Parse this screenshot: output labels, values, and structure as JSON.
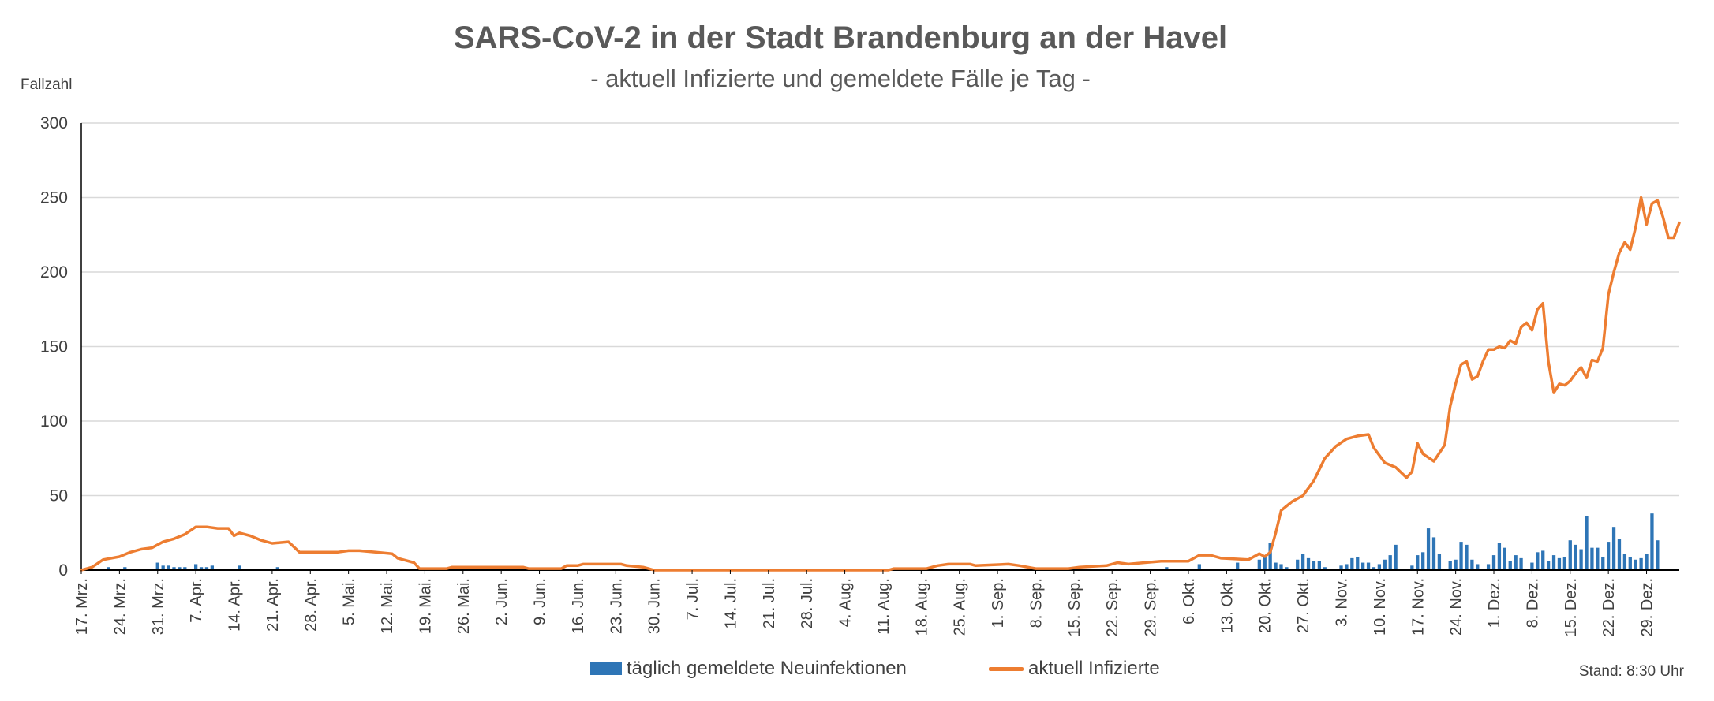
{
  "chart_data": {
    "type": "bar+line",
    "title": "SARS-CoV-2 in der Stadt Brandenburg an der Havel",
    "subtitle": "- aktuell Infizierte und gemeldete Fälle je Tag -",
    "ylabel": "Fallzahl",
    "ylim": [
      0,
      300
    ],
    "yticks": [
      0,
      50,
      100,
      150,
      200,
      250,
      300
    ],
    "grid": true,
    "x_start": "2020-03-17",
    "x_end": "2021-01-01",
    "xtick_labels": [
      "17. Mrz.",
      "24. Mrz.",
      "31. Mrz.",
      "7. Apr.",
      "14. Apr.",
      "21. Apr.",
      "28. Apr.",
      "5. Mai.",
      "12. Mai.",
      "19. Mai.",
      "26. Mai.",
      "2. Jun.",
      "9. Jun.",
      "16. Jun.",
      "23. Jun.",
      "30. Jun.",
      "7. Jul.",
      "14. Jul.",
      "21. Jul.",
      "28. Jul.",
      "4. Aug.",
      "11. Aug.",
      "18. Aug.",
      "25. Aug.",
      "1. Sep.",
      "8. Sep.",
      "15. Sep.",
      "22. Sep.",
      "29. Sep.",
      "6. Okt.",
      "13. Okt.",
      "20. Okt.",
      "27. Okt.",
      "3. Nov.",
      "10. Nov.",
      "17. Nov.",
      "24. Nov.",
      "1. Dez.",
      "8. Dez.",
      "15. Dez.",
      "22. Dez.",
      "29. Dez."
    ],
    "series": [
      {
        "name": "täglich gemeldete Neuinfektionen",
        "type": "bar",
        "color": "#2E75B6",
        "points": [
          [
            "2020-03-20",
            1
          ],
          [
            "2020-03-22",
            2
          ],
          [
            "2020-03-23",
            1
          ],
          [
            "2020-03-25",
            2
          ],
          [
            "2020-03-26",
            1
          ],
          [
            "2020-03-28",
            1
          ],
          [
            "2020-03-31",
            5
          ],
          [
            "2020-04-01",
            3
          ],
          [
            "2020-04-02",
            3
          ],
          [
            "2020-04-03",
            2
          ],
          [
            "2020-04-04",
            2
          ],
          [
            "2020-04-05",
            2
          ],
          [
            "2020-04-07",
            4
          ],
          [
            "2020-04-08",
            2
          ],
          [
            "2020-04-09",
            2
          ],
          [
            "2020-04-10",
            3
          ],
          [
            "2020-04-11",
            1
          ],
          [
            "2020-04-15",
            3
          ],
          [
            "2020-04-22",
            2
          ],
          [
            "2020-04-23",
            1
          ],
          [
            "2020-04-25",
            1
          ],
          [
            "2020-05-04",
            1
          ],
          [
            "2020-05-06",
            1
          ],
          [
            "2020-05-11",
            1
          ],
          [
            "2020-06-10",
            1
          ],
          [
            "2020-06-12",
            1
          ],
          [
            "2020-08-19",
            1
          ],
          [
            "2020-08-20",
            1
          ],
          [
            "2020-08-24",
            1
          ],
          [
            "2020-09-03",
            1
          ],
          [
            "2020-09-18",
            1
          ],
          [
            "2020-09-23",
            1
          ],
          [
            "2020-10-02",
            2
          ],
          [
            "2020-10-08",
            4
          ],
          [
            "2020-10-15",
            5
          ],
          [
            "2020-10-19",
            7
          ],
          [
            "2020-10-20",
            9
          ],
          [
            "2020-10-21",
            18
          ],
          [
            "2020-10-22",
            5
          ],
          [
            "2020-10-23",
            4
          ],
          [
            "2020-10-24",
            2
          ],
          [
            "2020-10-26",
            7
          ],
          [
            "2020-10-27",
            11
          ],
          [
            "2020-10-28",
            8
          ],
          [
            "2020-10-29",
            6
          ],
          [
            "2020-10-30",
            6
          ],
          [
            "2020-10-31",
            2
          ],
          [
            "2020-11-02",
            1
          ],
          [
            "2020-11-03",
            3
          ],
          [
            "2020-11-04",
            4
          ],
          [
            "2020-11-05",
            8
          ],
          [
            "2020-11-06",
            9
          ],
          [
            "2020-11-07",
            5
          ],
          [
            "2020-11-08",
            5
          ],
          [
            "2020-11-09",
            2
          ],
          [
            "2020-11-10",
            4
          ],
          [
            "2020-11-11",
            7
          ],
          [
            "2020-11-12",
            10
          ],
          [
            "2020-11-13",
            17
          ],
          [
            "2020-11-14",
            1
          ],
          [
            "2020-11-16",
            3
          ],
          [
            "2020-11-17",
            10
          ],
          [
            "2020-11-18",
            12
          ],
          [
            "2020-11-19",
            28
          ],
          [
            "2020-11-20",
            22
          ],
          [
            "2020-11-21",
            11
          ],
          [
            "2020-11-23",
            6
          ],
          [
            "2020-11-24",
            7
          ],
          [
            "2020-11-25",
            19
          ],
          [
            "2020-11-26",
            17
          ],
          [
            "2020-11-27",
            7
          ],
          [
            "2020-11-28",
            4
          ],
          [
            "2020-11-30",
            4
          ],
          [
            "2020-12-01",
            10
          ],
          [
            "2020-12-02",
            18
          ],
          [
            "2020-12-03",
            15
          ],
          [
            "2020-12-04",
            6
          ],
          [
            "2020-12-05",
            10
          ],
          [
            "2020-12-06",
            8
          ],
          [
            "2020-12-08",
            5
          ],
          [
            "2020-12-09",
            12
          ],
          [
            "2020-12-10",
            13
          ],
          [
            "2020-12-11",
            6
          ],
          [
            "2020-12-12",
            10
          ],
          [
            "2020-12-13",
            8
          ],
          [
            "2020-12-14",
            9
          ],
          [
            "2020-12-15",
            20
          ],
          [
            "2020-12-16",
            17
          ],
          [
            "2020-12-17",
            14
          ],
          [
            "2020-12-18",
            36
          ],
          [
            "2020-12-19",
            15
          ],
          [
            "2020-12-20",
            15
          ],
          [
            "2020-12-21",
            9
          ],
          [
            "2020-12-22",
            19
          ],
          [
            "2020-12-23",
            29
          ],
          [
            "2020-12-24",
            21
          ],
          [
            "2020-12-25",
            11
          ],
          [
            "2020-12-26",
            9
          ],
          [
            "2020-12-27",
            7
          ],
          [
            "2020-12-28",
            8
          ],
          [
            "2020-12-29",
            11
          ],
          [
            "2020-12-30",
            38
          ],
          [
            "2020-12-31",
            20
          ]
        ]
      },
      {
        "name": "aktuell Infizierte",
        "type": "line",
        "color": "#ED7D31",
        "points": [
          [
            "2020-03-17",
            0
          ],
          [
            "2020-03-19",
            2
          ],
          [
            "2020-03-21",
            7
          ],
          [
            "2020-03-24",
            9
          ],
          [
            "2020-03-26",
            12
          ],
          [
            "2020-03-28",
            14
          ],
          [
            "2020-03-30",
            15
          ],
          [
            "2020-04-01",
            19
          ],
          [
            "2020-04-03",
            21
          ],
          [
            "2020-04-05",
            24
          ],
          [
            "2020-04-07",
            29
          ],
          [
            "2020-04-09",
            29
          ],
          [
            "2020-04-11",
            28
          ],
          [
            "2020-04-13",
            28
          ],
          [
            "2020-04-14",
            23
          ],
          [
            "2020-04-15",
            25
          ],
          [
            "2020-04-17",
            23
          ],
          [
            "2020-04-19",
            20
          ],
          [
            "2020-04-21",
            18
          ],
          [
            "2020-04-24",
            19
          ],
          [
            "2020-04-26",
            12
          ],
          [
            "2020-04-29",
            12
          ],
          [
            "2020-05-01",
            12
          ],
          [
            "2020-05-03",
            12
          ],
          [
            "2020-05-05",
            13
          ],
          [
            "2020-05-07",
            13
          ],
          [
            "2020-05-10",
            12
          ],
          [
            "2020-05-13",
            11
          ],
          [
            "2020-05-14",
            8
          ],
          [
            "2020-05-17",
            5
          ],
          [
            "2020-05-18",
            1
          ],
          [
            "2020-05-21",
            1
          ],
          [
            "2020-05-23",
            1
          ],
          [
            "2020-05-24",
            2
          ],
          [
            "2020-06-06",
            2
          ],
          [
            "2020-06-07",
            1
          ],
          [
            "2020-06-13",
            1
          ],
          [
            "2020-06-14",
            3
          ],
          [
            "2020-06-16",
            3
          ],
          [
            "2020-06-17",
            4
          ],
          [
            "2020-06-24",
            4
          ],
          [
            "2020-06-25",
            3
          ],
          [
            "2020-06-28",
            2
          ],
          [
            "2020-06-29",
            1
          ],
          [
            "2020-06-30",
            0
          ],
          [
            "2020-08-12",
            0
          ],
          [
            "2020-08-13",
            1
          ],
          [
            "2020-08-19",
            1
          ],
          [
            "2020-08-21",
            3
          ],
          [
            "2020-08-23",
            4
          ],
          [
            "2020-08-27",
            4
          ],
          [
            "2020-08-28",
            3
          ],
          [
            "2020-09-03",
            4
          ],
          [
            "2020-09-05",
            3
          ],
          [
            "2020-09-08",
            1
          ],
          [
            "2020-09-14",
            1
          ],
          [
            "2020-09-16",
            2
          ],
          [
            "2020-09-21",
            3
          ],
          [
            "2020-09-23",
            5
          ],
          [
            "2020-09-25",
            4
          ],
          [
            "2020-09-28",
            5
          ],
          [
            "2020-10-01",
            6
          ],
          [
            "2020-10-03",
            6
          ],
          [
            "2020-10-06",
            6
          ],
          [
            "2020-10-08",
            10
          ],
          [
            "2020-10-10",
            10
          ],
          [
            "2020-10-12",
            8
          ],
          [
            "2020-10-17",
            7
          ],
          [
            "2020-10-19",
            11
          ],
          [
            "2020-10-20",
            9
          ],
          [
            "2020-10-21",
            12
          ],
          [
            "2020-10-22",
            25
          ],
          [
            "2020-10-23",
            40
          ],
          [
            "2020-10-25",
            46
          ],
          [
            "2020-10-27",
            50
          ],
          [
            "2020-10-29",
            60
          ],
          [
            "2020-10-31",
            75
          ],
          [
            "2020-11-02",
            83
          ],
          [
            "2020-11-04",
            88
          ],
          [
            "2020-11-06",
            90
          ],
          [
            "2020-11-08",
            91
          ],
          [
            "2020-11-09",
            82
          ],
          [
            "2020-11-11",
            72
          ],
          [
            "2020-11-13",
            69
          ],
          [
            "2020-11-15",
            62
          ],
          [
            "2020-11-16",
            66
          ],
          [
            "2020-11-17",
            85
          ],
          [
            "2020-11-18",
            78
          ],
          [
            "2020-11-20",
            73
          ],
          [
            "2020-11-22",
            84
          ],
          [
            "2020-11-23",
            110
          ],
          [
            "2020-11-24",
            125
          ],
          [
            "2020-11-25",
            138
          ],
          [
            "2020-11-26",
            140
          ],
          [
            "2020-11-27",
            128
          ],
          [
            "2020-11-28",
            130
          ],
          [
            "2020-11-29",
            140
          ],
          [
            "2020-11-30",
            148
          ],
          [
            "2020-12-01",
            148
          ],
          [
            "2020-12-02",
            150
          ],
          [
            "2020-12-03",
            149
          ],
          [
            "2020-12-04",
            154
          ],
          [
            "2020-12-05",
            152
          ],
          [
            "2020-12-06",
            163
          ],
          [
            "2020-12-07",
            166
          ],
          [
            "2020-12-08",
            161
          ],
          [
            "2020-12-09",
            175
          ],
          [
            "2020-12-10",
            179
          ],
          [
            "2020-12-11",
            140
          ],
          [
            "2020-12-12",
            119
          ],
          [
            "2020-12-13",
            125
          ],
          [
            "2020-12-14",
            124
          ],
          [
            "2020-12-15",
            127
          ],
          [
            "2020-12-16",
            132
          ],
          [
            "2020-12-17",
            136
          ],
          [
            "2020-12-18",
            129
          ],
          [
            "2020-12-19",
            141
          ],
          [
            "2020-12-20",
            140
          ],
          [
            "2020-12-21",
            149
          ],
          [
            "2020-12-22",
            185
          ],
          [
            "2020-12-23",
            200
          ],
          [
            "2020-12-24",
            213
          ],
          [
            "2020-12-25",
            220
          ],
          [
            "2020-12-26",
            215
          ],
          [
            "2020-12-27",
            230
          ],
          [
            "2020-12-28",
            250
          ],
          [
            "2020-12-29",
            232
          ],
          [
            "2020-12-30",
            246
          ],
          [
            "2020-12-31",
            248
          ],
          [
            "2021-01-01",
            237
          ],
          [
            "2021-01-02",
            223
          ],
          [
            "2021-01-03",
            223
          ],
          [
            "2021-01-04",
            233
          ]
        ]
      }
    ],
    "legend": "bottom-center",
    "footnote": "Stand: 8:30 Uhr"
  }
}
